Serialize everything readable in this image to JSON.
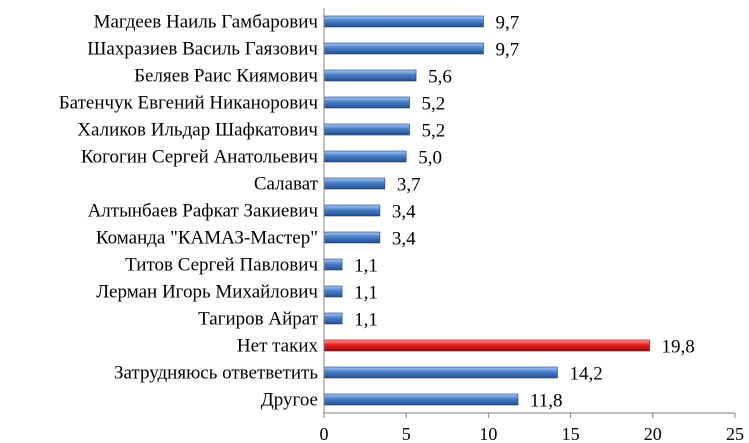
{
  "chart_data": {
    "type": "bar",
    "orientation": "horizontal",
    "categories": [
      "Магдеев Наиль Гамбарович",
      "Шахразиев Василь Гаязович",
      "Беляев Раис Киямович",
      "Батенчук Евгений Никанорович",
      "Халиков Ильдар Шафкатович",
      "Когогин Сергей Анатольевич",
      "Салават",
      "Алтынбаев Рафкат Закиевич",
      "Команда \"КАМАЗ-Мастер\"",
      "Титов Сергей Павлович",
      "Лерман Игорь Михайлович",
      "Тагиров Айрат",
      "Нет таких",
      "Затрудняюсь ответветить",
      "Другое"
    ],
    "values": [
      9.7,
      9.7,
      5.6,
      5.2,
      5.2,
      5.0,
      3.7,
      3.4,
      3.4,
      1.1,
      1.1,
      1.1,
      19.8,
      14.2,
      11.8
    ],
    "value_labels": [
      "9,7",
      "9,7",
      "5,6",
      "5,2",
      "5,2",
      "5,0",
      "3,7",
      "3,4",
      "3,4",
      "1,1",
      "1,1",
      "1,1",
      "19,8",
      "14,2",
      "11,8"
    ],
    "highlight_index": 12,
    "colors": {
      "bar": "#4a7fc8",
      "bar_highlight": "#e02020"
    },
    "xlim": [
      0,
      25
    ],
    "xticks": [
      "0",
      "5",
      "10",
      "15",
      "20",
      "25"
    ],
    "tick_values": [
      0,
      5,
      10,
      15,
      20,
      25
    ],
    "grid": false,
    "title": "",
    "xlabel": "",
    "ylabel": ""
  }
}
